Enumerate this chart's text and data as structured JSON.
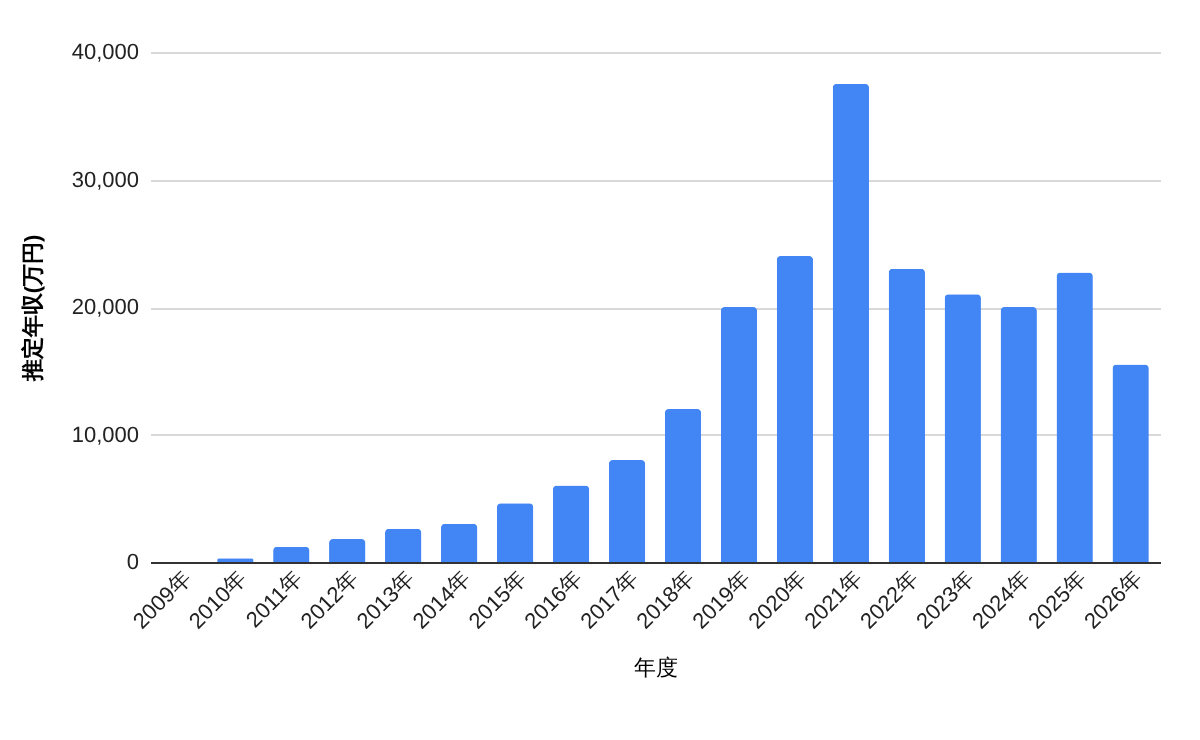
{
  "chart_data": {
    "type": "bar",
    "xlabel": "年度",
    "ylabel": "推定年収(万円)",
    "categories": [
      "2009年",
      "2010年",
      "2011年",
      "2012年",
      "2013年",
      "2014年",
      "2015年",
      "2016年",
      "2017年",
      "2018年",
      "2019年",
      "2020年",
      "2021年",
      "2022年",
      "2023年",
      "2024年",
      "2025年",
      "2026年"
    ],
    "values": [
      0,
      300,
      1200,
      1800,
      2600,
      3000,
      4600,
      6000,
      8000,
      12000,
      20000,
      24000,
      37500,
      23000,
      21000,
      20000,
      22700,
      15500
    ],
    "color": "#4285f4",
    "ylim": [
      0,
      40000
    ],
    "yticks": [
      0,
      {
        "value": 10000,
        "label": "10,000"
      },
      {
        "value": 20000,
        "label": "20,000"
      },
      {
        "value": 30000,
        "label": "30,000"
      },
      {
        "value": 40000,
        "label": "40,000"
      }
    ],
    "grid": "y"
  }
}
